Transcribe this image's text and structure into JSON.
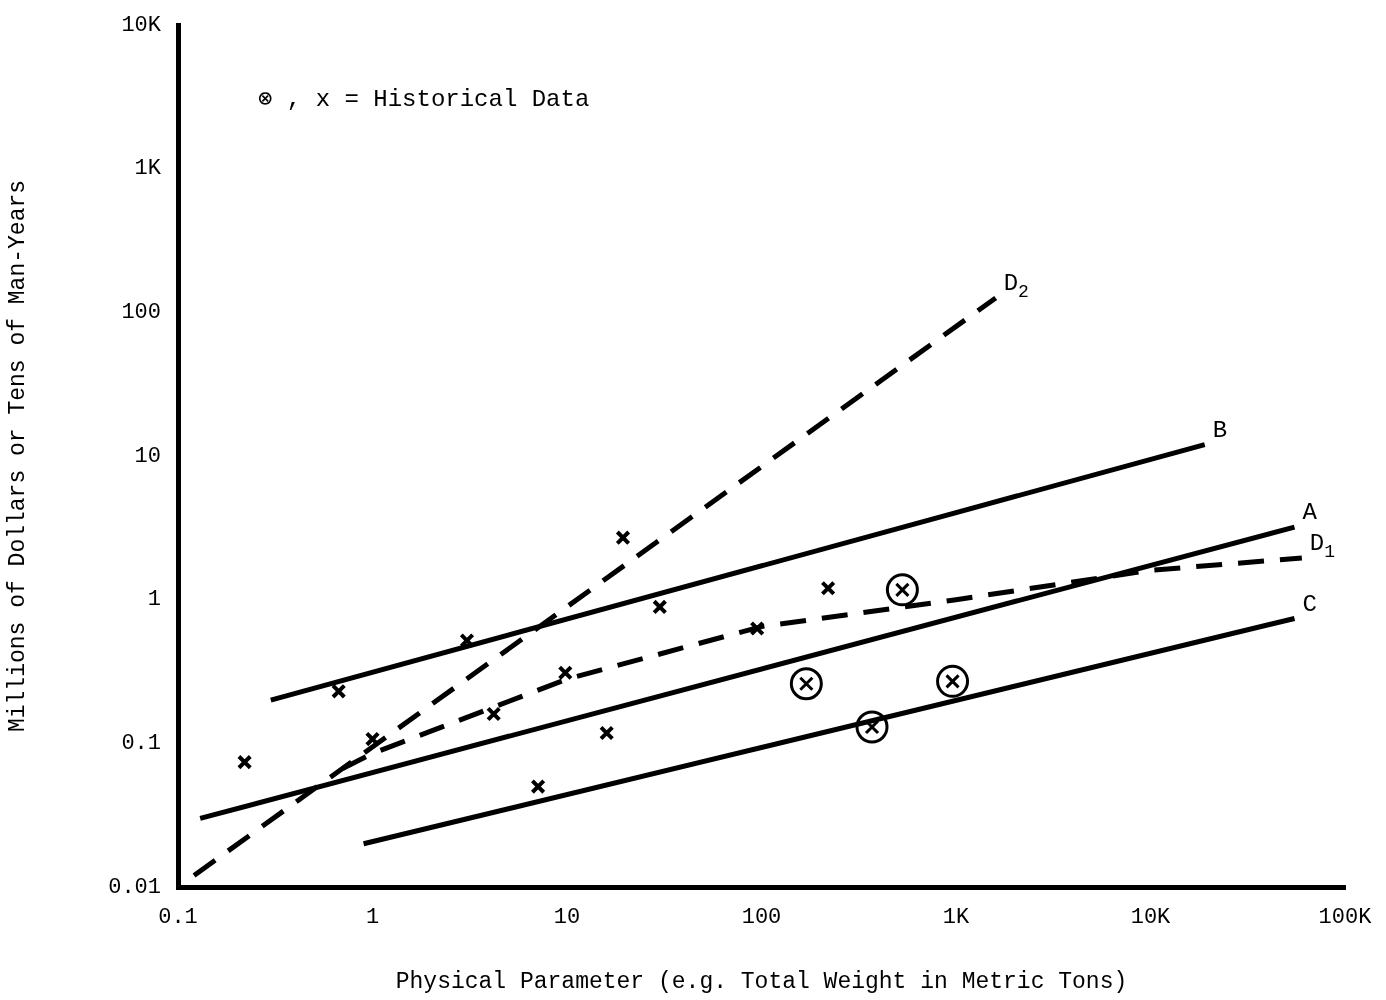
{
  "chart_data": {
    "type": "line",
    "xlabel": "Physical Parameter (e.g. Total Weight in Metric Tons)",
    "ylabel": "Millions of Dollars or Tens of Man-Years",
    "log": "xy",
    "grid": false,
    "legend": false,
    "xlim": [
      0.1,
      100000
    ],
    "ylim": [
      0.01,
      10000
    ],
    "xticks": [
      0.1,
      1,
      10,
      100,
      {
        "value": 1000,
        "label": "1K"
      },
      {
        "value": 10000,
        "label": "10K"
      },
      {
        "value": 100000,
        "label": "100K"
      }
    ],
    "yticks": [
      0.01,
      0.1,
      1,
      10,
      100,
      {
        "value": 1000,
        "label": "1K"
      },
      {
        "value": 10000,
        "label": "10K"
      }
    ],
    "annotations": [
      "⊗ , x = Historical Data"
    ],
    "series": [
      {
        "name": "D$_{2}$",
        "type": "line",
        "color": "#000000",
        "line_style": "dashed",
        "marker": "none",
        "x": [
          0.1,
          1600
        ],
        "values": [
          0.01,
          126
        ]
      },
      {
        "name": "B",
        "type": "line",
        "color": "#000000",
        "line_style": "solid",
        "marker": "none",
        "x": [
          0.3,
          19000
        ],
        "values": [
          0.2,
          12
        ]
      },
      {
        "name": "A",
        "type": "line",
        "color": "#000000",
        "line_style": "solid",
        "marker": "none",
        "x": [
          0.13,
          55000
        ],
        "values": [
          0.03,
          3.2
        ]
      },
      {
        "name": "D$_{1}$",
        "type": "line",
        "color": "#000000",
        "line_style": "dashed",
        "marker": "none",
        "x": [
          0.6,
          1,
          10,
          100,
          1000,
          10000,
          60000
        ],
        "values": [
          0.06,
          0.085,
          0.28,
          0.65,
          1.0,
          1.6,
          1.95
        ]
      },
      {
        "name": "C",
        "type": "line",
        "color": "#000000",
        "line_style": "solid",
        "marker": "none",
        "x": [
          0.9,
          55000
        ],
        "values": [
          0.02,
          0.74
        ]
      },
      {
        "type": "scatter",
        "color": "#000000",
        "marker": "cross",
        "x": [
          0.22,
          0.67,
          1,
          3.06,
          4.2,
          7.1,
          9.8,
          16,
          19.4,
          30,
          95,
          220
        ],
        "values": [
          0.074,
          0.23,
          0.107,
          0.52,
          0.16,
          0.05,
          0.31,
          0.118,
          2.7,
          0.89,
          0.63,
          1.2
        ]
      },
      {
        "type": "scatter",
        "color": "#000000",
        "marker": "circle",
        "x": [
          170,
          370,
          530,
          960
        ],
        "values": [
          0.26,
          0.13,
          1.17,
          0.27
        ]
      }
    ]
  }
}
